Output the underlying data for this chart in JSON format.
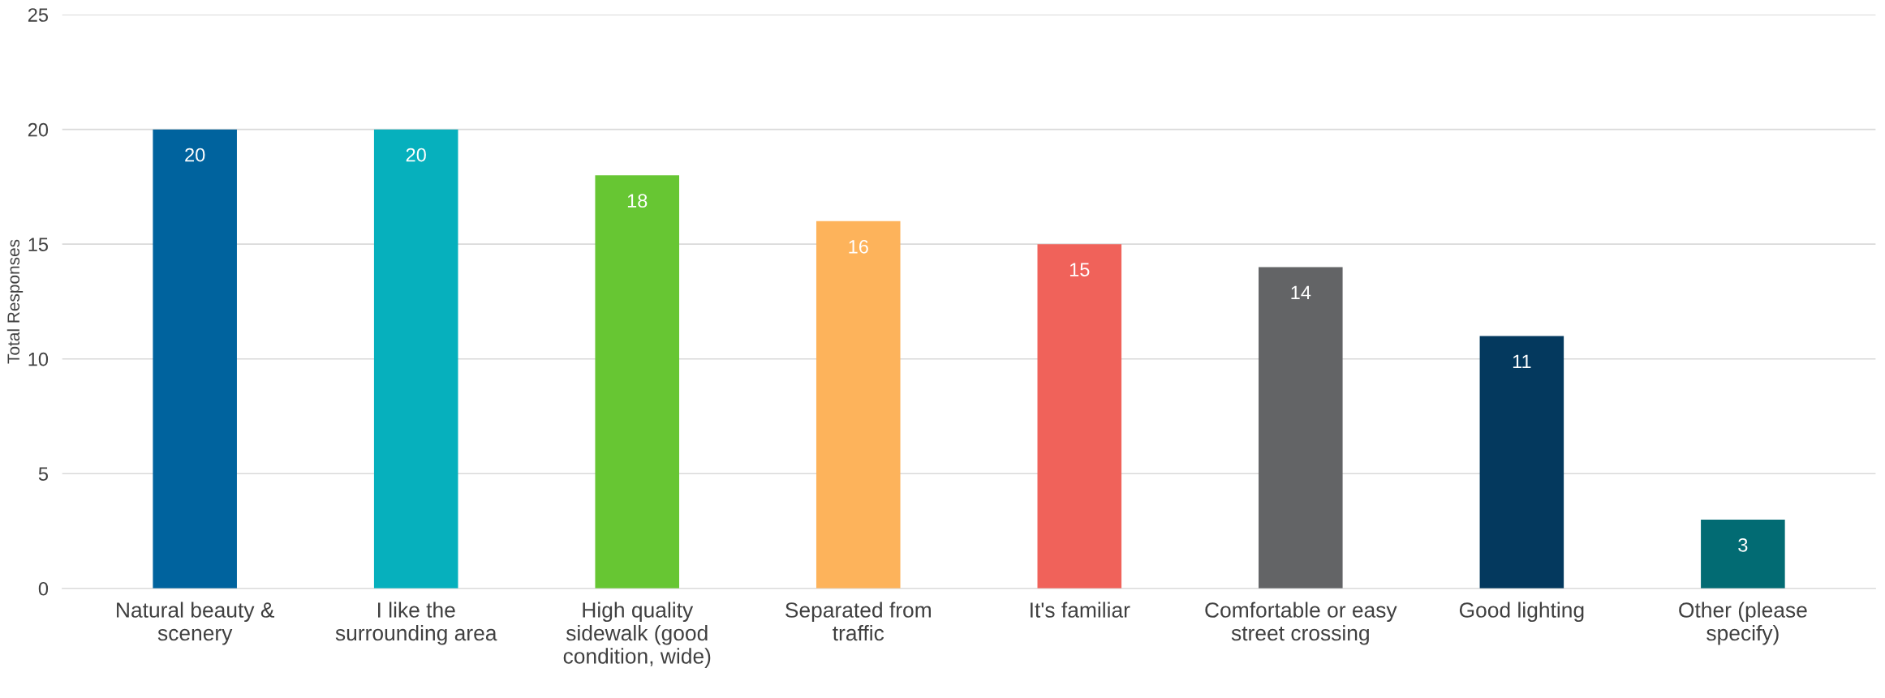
{
  "chart_data": {
    "type": "bar",
    "ylabel": "Total Responses",
    "categories": [
      "Natural beauty &\nscenery",
      "I like the\nsurrounding area",
      "High quality\nsidewalk (good\ncondition, wide)",
      "Separated from\ntraffic",
      "It's familiar",
      "Comfortable or easy\nstreet crossing",
      "Good lighting",
      "Other (please\nspecify)"
    ],
    "values": [
      20,
      20,
      18,
      16,
      15,
      14,
      11,
      3
    ],
    "colors": [
      "#00639e",
      "#06b0bd",
      "#67c633",
      "#fdb35b",
      "#f0625a",
      "#636466",
      "#04395e",
      "#026b73"
    ],
    "ylim": [
      0,
      25
    ],
    "yticks": [
      0,
      5,
      10,
      15,
      20,
      25
    ],
    "grid": "y",
    "data_labels": true
  }
}
